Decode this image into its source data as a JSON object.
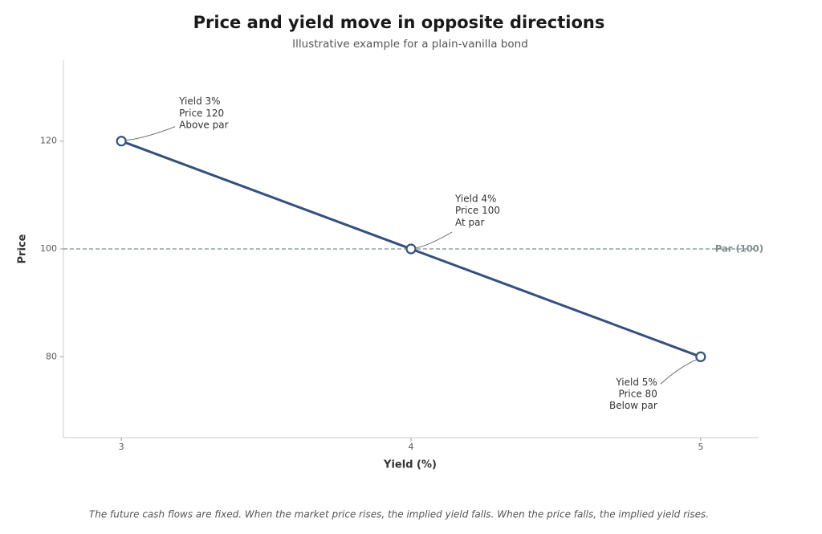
{
  "chart_data": {
    "type": "line",
    "title": "Price and yield move in opposite directions",
    "subtitle": "Illustrative example for a plain-vanilla bond",
    "x_label": "Yield (%)",
    "y_label": "Price",
    "x": [
      3,
      4,
      5
    ],
    "series": [
      {
        "name": "Price",
        "color": "#34507e",
        "values": [
          120,
          100,
          80
        ]
      }
    ],
    "xlim": [
      2.8,
      5.2
    ],
    "ylim": [
      65,
      135
    ],
    "xticks": [
      3,
      4,
      5
    ],
    "yticks": [
      80,
      100,
      120
    ],
    "reference_line": {
      "value": 100,
      "label": "Par (100)",
      "color": "#7f8c8d"
    },
    "annotations": [
      {
        "lines": [
          "Yield 3%",
          "Price 120",
          "Above par"
        ]
      },
      {
        "lines": [
          "Yield 4%",
          "Price 100",
          "At par"
        ]
      },
      {
        "lines": [
          "Yield 5%",
          "Price 80",
          "Below par"
        ]
      }
    ],
    "footnote": "The future cash flows are fixed. When the market price rises, the implied yield falls. When the price falls, the implied yield rises."
  }
}
